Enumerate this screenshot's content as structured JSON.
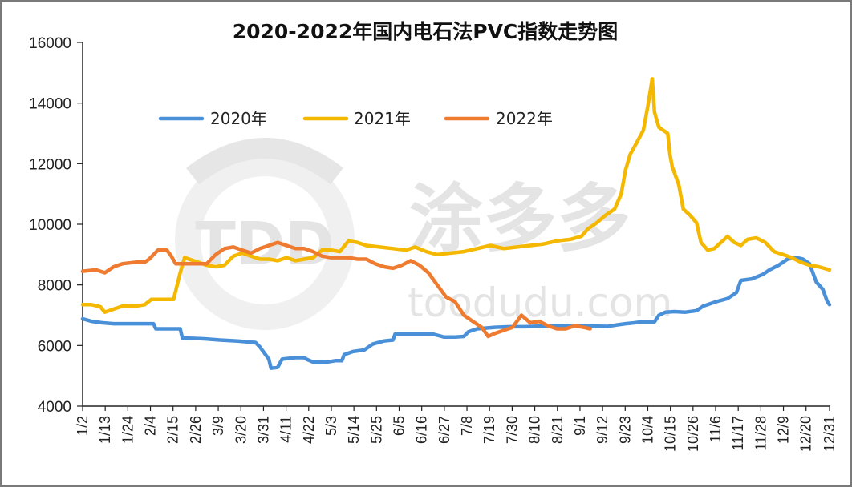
{
  "chart_data": {
    "type": "line",
    "title": "2020-2022年国内电石法PVC指数走势图",
    "ylim": [
      4000,
      16000
    ],
    "yticks": [
      4000,
      6000,
      8000,
      10000,
      12000,
      14000,
      16000
    ],
    "x_labels": [
      "1/2",
      "1/13",
      "1/24",
      "2/4",
      "2/15",
      "2/26",
      "3/9",
      "3/20",
      "3/31",
      "4/11",
      "4/22",
      "5/3",
      "5/14",
      "5/25",
      "6/5",
      "6/16",
      "6/27",
      "7/8",
      "7/19",
      "7/30",
      "8/10",
      "8/21",
      "9/1",
      "9/12",
      "9/23",
      "10/4",
      "10/15",
      "10/26",
      "11/6",
      "11/17",
      "11/28",
      "12/9",
      "12/20",
      "12/31"
    ],
    "grid": false,
    "legend_position": "top-left",
    "series": [
      {
        "name": "2020年",
        "color": "#4a90d9",
        "points": [
          [
            0,
            6880
          ],
          [
            4,
            6800
          ],
          [
            9,
            6750
          ],
          [
            14,
            6720
          ],
          [
            20,
            6720
          ],
          [
            28,
            6720
          ],
          [
            32,
            6720
          ],
          [
            33,
            6550
          ],
          [
            40,
            6550
          ],
          [
            44,
            6550
          ],
          [
            45,
            6250
          ],
          [
            55,
            6220
          ],
          [
            62,
            6180
          ],
          [
            70,
            6150
          ],
          [
            78,
            6100
          ],
          [
            80,
            5950
          ],
          [
            84,
            5550
          ],
          [
            85,
            5250
          ],
          [
            88,
            5280
          ],
          [
            90,
            5550
          ],
          [
            96,
            5600
          ],
          [
            100,
            5600
          ],
          [
            101,
            5550
          ],
          [
            104,
            5450
          ],
          [
            110,
            5450
          ],
          [
            114,
            5500
          ],
          [
            117,
            5500
          ],
          [
            118,
            5700
          ],
          [
            122,
            5800
          ],
          [
            127,
            5850
          ],
          [
            131,
            6050
          ],
          [
            136,
            6150
          ],
          [
            140,
            6180
          ],
          [
            141,
            6380
          ],
          [
            147,
            6380
          ],
          [
            152,
            6380
          ],
          [
            158,
            6380
          ],
          [
            163,
            6280
          ],
          [
            168,
            6280
          ],
          [
            172,
            6300
          ],
          [
            174,
            6450
          ],
          [
            178,
            6550
          ],
          [
            186,
            6600
          ],
          [
            193,
            6620
          ],
          [
            200,
            6620
          ],
          [
            206,
            6640
          ],
          [
            212,
            6640
          ],
          [
            218,
            6640
          ],
          [
            225,
            6650
          ],
          [
            231,
            6640
          ],
          [
            237,
            6630
          ],
          [
            241,
            6680
          ],
          [
            245,
            6720
          ],
          [
            249,
            6750
          ],
          [
            252,
            6780
          ],
          [
            254,
            6780
          ],
          [
            258,
            6780
          ],
          [
            260,
            7000
          ],
          [
            263,
            7100
          ],
          [
            267,
            7120
          ],
          [
            272,
            7100
          ],
          [
            277,
            7150
          ],
          [
            280,
            7300
          ],
          [
            286,
            7450
          ],
          [
            291,
            7550
          ],
          [
            295,
            7750
          ],
          [
            297,
            8150
          ],
          [
            302,
            8200
          ],
          [
            307,
            8350
          ],
          [
            310,
            8500
          ],
          [
            314,
            8650
          ],
          [
            318,
            8850
          ],
          [
            322,
            8900
          ],
          [
            325,
            8850
          ],
          [
            328,
            8700
          ],
          [
            331,
            8100
          ],
          [
            334,
            7850
          ],
          [
            336,
            7450
          ],
          [
            337,
            7350
          ]
        ]
      },
      {
        "name": "2021年",
        "color": "#f5b800",
        "points": [
          [
            0,
            7350
          ],
          [
            4,
            7350
          ],
          [
            8,
            7280
          ],
          [
            10,
            7100
          ],
          [
            14,
            7200
          ],
          [
            18,
            7300
          ],
          [
            24,
            7300
          ],
          [
            28,
            7350
          ],
          [
            31,
            7520
          ],
          [
            36,
            7520
          ],
          [
            41,
            7520
          ],
          [
            42,
            7800
          ],
          [
            44,
            8400
          ],
          [
            46,
            8900
          ],
          [
            52,
            8750
          ],
          [
            56,
            8650
          ],
          [
            60,
            8600
          ],
          [
            64,
            8650
          ],
          [
            68,
            8950
          ],
          [
            72,
            9050
          ],
          [
            76,
            8950
          ],
          [
            80,
            8850
          ],
          [
            84,
            8850
          ],
          [
            88,
            8800
          ],
          [
            92,
            8900
          ],
          [
            96,
            8800
          ],
          [
            100,
            8850
          ],
          [
            104,
            8900
          ],
          [
            108,
            9150
          ],
          [
            112,
            9150
          ],
          [
            116,
            9100
          ],
          [
            120,
            9450
          ],
          [
            124,
            9400
          ],
          [
            128,
            9300
          ],
          [
            134,
            9250
          ],
          [
            140,
            9200
          ],
          [
            146,
            9150
          ],
          [
            150,
            9250
          ],
          [
            155,
            9100
          ],
          [
            160,
            9000
          ],
          [
            166,
            9050
          ],
          [
            172,
            9100
          ],
          [
            178,
            9200
          ],
          [
            184,
            9300
          ],
          [
            190,
            9200
          ],
          [
            196,
            9250
          ],
          [
            202,
            9300
          ],
          [
            208,
            9350
          ],
          [
            214,
            9450
          ],
          [
            220,
            9500
          ],
          [
            225,
            9600
          ],
          [
            228,
            9850
          ],
          [
            232,
            10050
          ],
          [
            236,
            10300
          ],
          [
            240,
            10500
          ],
          [
            243,
            11000
          ],
          [
            245,
            11800
          ],
          [
            247,
            12300
          ],
          [
            250,
            12700
          ],
          [
            253,
            13100
          ],
          [
            255,
            13900
          ],
          [
            257,
            14800
          ],
          [
            258,
            13700
          ],
          [
            260,
            13200
          ],
          [
            262,
            13100
          ],
          [
            264,
            13000
          ],
          [
            265,
            12300
          ],
          [
            266,
            11900
          ],
          [
            268,
            11500
          ],
          [
            269,
            11300
          ],
          [
            271,
            10500
          ],
          [
            274,
            10300
          ],
          [
            277,
            10050
          ],
          [
            279,
            9400
          ],
          [
            282,
            9150
          ],
          [
            285,
            9200
          ],
          [
            288,
            9400
          ],
          [
            291,
            9600
          ],
          [
            294,
            9400
          ],
          [
            297,
            9300
          ],
          [
            300,
            9500
          ],
          [
            304,
            9550
          ],
          [
            308,
            9400
          ],
          [
            312,
            9100
          ],
          [
            316,
            9000
          ],
          [
            320,
            8900
          ],
          [
            324,
            8750
          ],
          [
            328,
            8650
          ],
          [
            332,
            8600
          ],
          [
            337,
            8500
          ]
        ]
      },
      {
        "name": "2022年",
        "color": "#ee7b30",
        "points": [
          [
            0,
            8450
          ],
          [
            6,
            8500
          ],
          [
            10,
            8400
          ],
          [
            14,
            8600
          ],
          [
            18,
            8700
          ],
          [
            24,
            8750
          ],
          [
            28,
            8750
          ],
          [
            30,
            8850
          ],
          [
            34,
            9150
          ],
          [
            38,
            9150
          ],
          [
            40,
            8950
          ],
          [
            42,
            8700
          ],
          [
            46,
            8700
          ],
          [
            52,
            8700
          ],
          [
            56,
            8700
          ],
          [
            58,
            8850
          ],
          [
            60,
            9000
          ],
          [
            64,
            9200
          ],
          [
            68,
            9250
          ],
          [
            72,
            9150
          ],
          [
            76,
            9050
          ],
          [
            80,
            9200
          ],
          [
            84,
            9300
          ],
          [
            88,
            9400
          ],
          [
            92,
            9300
          ],
          [
            96,
            9200
          ],
          [
            100,
            9200
          ],
          [
            104,
            9100
          ],
          [
            108,
            8950
          ],
          [
            112,
            8900
          ],
          [
            116,
            8900
          ],
          [
            120,
            8900
          ],
          [
            124,
            8850
          ],
          [
            128,
            8850
          ],
          [
            132,
            8700
          ],
          [
            136,
            8600
          ],
          [
            140,
            8550
          ],
          [
            144,
            8650
          ],
          [
            148,
            8800
          ],
          [
            152,
            8650
          ],
          [
            156,
            8400
          ],
          [
            160,
            8000
          ],
          [
            164,
            7600
          ],
          [
            168,
            7450
          ],
          [
            172,
            7000
          ],
          [
            176,
            6800
          ],
          [
            180,
            6600
          ],
          [
            183,
            6300
          ],
          [
            186,
            6400
          ],
          [
            190,
            6500
          ],
          [
            194,
            6600
          ],
          [
            198,
            7000
          ],
          [
            202,
            6750
          ],
          [
            206,
            6800
          ],
          [
            210,
            6650
          ],
          [
            214,
            6550
          ],
          [
            218,
            6550
          ],
          [
            222,
            6650
          ],
          [
            226,
            6600
          ],
          [
            229,
            6550
          ]
        ]
      }
    ]
  },
  "watermark": {
    "brand_text": "涂多多",
    "url_text": "toodudu.com",
    "logo_letters": "TDD"
  }
}
